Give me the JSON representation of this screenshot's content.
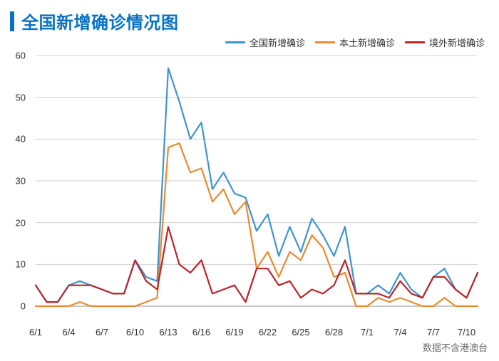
{
  "title": "全国新增确诊情况图",
  "footer": "数据不含港澳台",
  "legend": [
    {
      "label": "全国新增确诊",
      "color": "#3e94d1"
    },
    {
      "label": "本土新增确诊",
      "color": "#ea8b2e"
    },
    {
      "label": "境外新增确诊",
      "color": "#b8242a"
    }
  ],
  "chart": {
    "type": "line",
    "background_color": "#ffffff",
    "grid_color": "#d0d0d0",
    "axis_color": "#c0c0c0",
    "axis_label_color": "#303030",
    "label_fontsize": 13,
    "ylim": [
      0,
      60
    ],
    "ytick_step": 10,
    "yticks": [
      0,
      10,
      20,
      30,
      40,
      50,
      60
    ],
    "line_width": 2.2,
    "dates": [
      "6/1",
      "6/2",
      "6/3",
      "6/4",
      "6/5",
      "6/6",
      "6/7",
      "6/8",
      "6/9",
      "6/10",
      "6/11",
      "6/12",
      "6/13",
      "6/14",
      "6/15",
      "6/16",
      "6/17",
      "6/18",
      "6/19",
      "6/20",
      "6/21",
      "6/22",
      "6/23",
      "6/24",
      "6/25",
      "6/26",
      "6/27",
      "6/28",
      "6/29",
      "6/30",
      "7/1",
      "7/2",
      "7/3",
      "7/4",
      "7/5",
      "7/6",
      "7/7",
      "7/8",
      "7/9",
      "7/10",
      "7/11"
    ],
    "xticks": [
      "6/1",
      "6/4",
      "6/7",
      "6/10",
      "6/13",
      "6/16",
      "6/19",
      "6/22",
      "6/25",
      "6/28",
      "7/1",
      "7/4",
      "7/7",
      "7/10"
    ],
    "series": [
      {
        "name": "all",
        "color": "#3e94d1",
        "values": [
          5,
          1,
          1,
          5,
          6,
          5,
          4,
          3,
          3,
          11,
          7,
          6,
          57,
          49,
          40,
          44,
          28,
          32,
          27,
          26,
          18,
          22,
          12,
          19,
          13,
          21,
          17,
          12,
          19,
          3,
          3,
          5,
          3,
          8,
          4,
          2,
          7,
          9,
          4,
          2,
          8
        ]
      },
      {
        "name": "local",
        "color": "#ea8b2e",
        "values": [
          0,
          0,
          0,
          0,
          1,
          0,
          0,
          0,
          0,
          0,
          1,
          2,
          38,
          39,
          32,
          33,
          25,
          28,
          22,
          25,
          9,
          13,
          7,
          13,
          11,
          17,
          14,
          7,
          8,
          0,
          0,
          2,
          1,
          2,
          1,
          0,
          0,
          2,
          0,
          0,
          0
        ]
      },
      {
        "name": "imported",
        "color": "#b8242a",
        "values": [
          5,
          1,
          1,
          5,
          5,
          5,
          4,
          3,
          3,
          11,
          6,
          4,
          19,
          10,
          8,
          11,
          3,
          4,
          5,
          1,
          9,
          9,
          5,
          6,
          2,
          4,
          3,
          5,
          11,
          3,
          3,
          3,
          2,
          6,
          3,
          2,
          7,
          7,
          4,
          2,
          8
        ]
      }
    ]
  }
}
